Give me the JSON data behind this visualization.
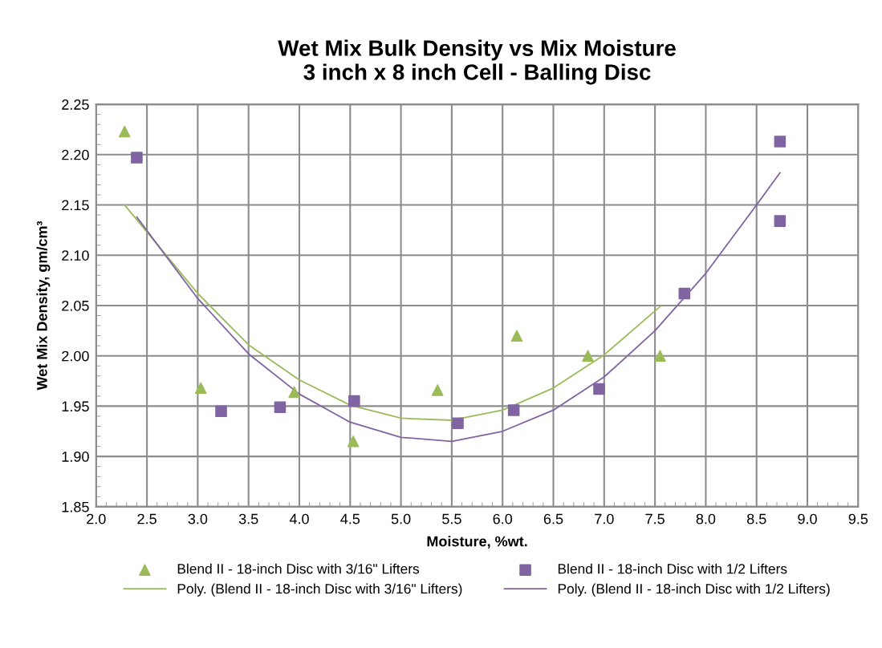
{
  "chart_data": {
    "type": "scatter",
    "title": "Wet Mix Bulk Density vs Mix Moisture\n3 inch x 8 inch Cell - Balling Disc",
    "xlabel": "Moisture, %wt.",
    "ylabel": "Wet Mix Density, gm/cm³",
    "xlim": [
      2.0,
      9.5
    ],
    "xticks": [
      {
        "value": 2.0,
        "label": "2.0"
      },
      2.5,
      {
        "value": 3.0,
        "label": "3.0"
      },
      3.5,
      {
        "value": 4.0,
        "label": "4.0"
      },
      4.5,
      {
        "value": 5.0,
        "label": "5.0"
      },
      5.5,
      {
        "value": 6.0,
        "label": "6.0"
      },
      6.5,
      {
        "value": 7.0,
        "label": "7.0"
      },
      7.5,
      {
        "value": 8.0,
        "label": "8.0"
      },
      8.5,
      {
        "value": 9.0,
        "label": "9.0"
      },
      9.5
    ],
    "ylim": [
      1.85,
      2.25
    ],
    "yticks": [
      1.85,
      {
        "value": 1.9,
        "label": "1.90"
      },
      1.95,
      {
        "value": 2.0,
        "label": "2.00"
      },
      2.05,
      {
        "value": 2.1,
        "label": "2.10"
      },
      2.15,
      {
        "value": 2.2,
        "label": "2.20"
      },
      2.25
    ],
    "grid": true,
    "legend": "bottom",
    "series": [
      {
        "name": "Blend II - 18-inch Disc with 3/16\" Lifters",
        "marker": "triangle",
        "color": "#9bbb59",
        "x": [
          2.28,
          3.03,
          3.95,
          4.53,
          5.36,
          6.14,
          6.84,
          7.55
        ],
        "values": [
          2.223,
          1.968,
          1.964,
          1.915,
          1.966,
          2.02,
          2.0,
          2.0
        ]
      },
      {
        "name": "Blend II - 18-inch Disc with 1/2 Lifters",
        "marker": "square",
        "color": "#8064a2",
        "x": [
          2.4,
          3.23,
          3.81,
          4.54,
          5.56,
          6.11,
          6.95,
          7.79,
          8.73,
          8.73
        ],
        "values": [
          2.197,
          1.945,
          1.949,
          1.955,
          1.933,
          1.946,
          1.967,
          2.062,
          2.213,
          2.134
        ]
      },
      {
        "name": "Poly. (Blend II - 18-inch Disc with 3/16\" Lifters)",
        "type": "line",
        "marker": "none",
        "line_style": "solid",
        "color": "#9bbb59",
        "x": [
          2.28,
          3.0,
          3.5,
          4.0,
          4.5,
          5.0,
          5.5,
          6.0,
          6.5,
          7.0,
          7.55
        ],
        "values": [
          2.15,
          2.062,
          2.011,
          1.976,
          1.951,
          1.938,
          1.936,
          1.946,
          1.968,
          2.001,
          2.049
        ]
      },
      {
        "name": "Poly. (Blend II - 18-inch Disc with 1/2 Lifters)",
        "type": "line",
        "marker": "none",
        "line_style": "solid",
        "color": "#8064a2",
        "x": [
          2.4,
          3.0,
          3.5,
          4.0,
          4.5,
          5.0,
          5.5,
          6.0,
          6.5,
          7.0,
          7.5,
          8.0,
          8.5,
          8.73
        ],
        "values": [
          2.138,
          2.057,
          2.002,
          1.962,
          1.934,
          1.919,
          1.915,
          1.925,
          1.946,
          1.979,
          2.025,
          2.082,
          2.15,
          2.182
        ]
      }
    ]
  }
}
